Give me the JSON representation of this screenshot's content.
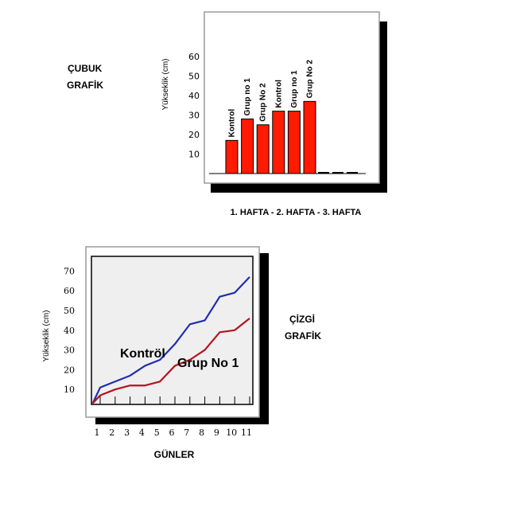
{
  "bar_section": {
    "title_line1": "ÇUBUK",
    "title_line2": "GRAFİK",
    "xlabel": "1. HAFTA -  2. HAFTA - 3. HAFTA"
  },
  "line_section": {
    "title_line1": "ÇİZGİ",
    "title_line2": "GRAFİK",
    "xlabel": "GÜNLER"
  },
  "colors": {
    "bar_fill": "#ff1a00",
    "kontrol_line": "#1f2fb0",
    "grup_line": "#b3141f",
    "plot_bg": "#efefef",
    "shadow": "#000000"
  },
  "chart_data": [
    {
      "type": "bar",
      "ylabel": "Yükseklik (cm)",
      "ylim": [
        0,
        65
      ],
      "yticks": [
        10,
        20,
        30,
        40,
        50,
        60
      ],
      "categories": [
        "Kontrol",
        "Grup no 1",
        "Grup No 2",
        "Kontrol",
        "Grup no 1",
        "Grup No 2"
      ],
      "values": [
        17,
        28,
        25,
        32,
        32,
        37
      ],
      "grid": false,
      "legend": "none"
    },
    {
      "type": "line",
      "ylabel": "Yükseklik (cm)",
      "xlabel": "GÜNLER",
      "x": [
        1,
        2,
        3,
        4,
        5,
        6,
        7,
        8,
        9,
        10,
        11
      ],
      "ylim": [
        0,
        75
      ],
      "yticks": [
        10,
        20,
        30,
        40,
        50,
        60,
        70
      ],
      "series": [
        {
          "name": "Kontröl",
          "x": [
            0.5,
            1,
            2,
            3,
            4,
            5,
            6,
            7,
            8,
            9,
            10,
            11
          ],
          "values": [
            3,
            11,
            14,
            17,
            22,
            25,
            33,
            43,
            45,
            57,
            59,
            67
          ]
        },
        {
          "name": "Grup No 1",
          "x": [
            0.5,
            1,
            2,
            3,
            4,
            5,
            6,
            7,
            8,
            9,
            10,
            11
          ],
          "values": [
            3,
            7,
            10,
            12,
            12,
            14,
            22,
            25,
            30,
            39,
            40,
            46
          ]
        }
      ],
      "grid": false,
      "legend": "inline"
    }
  ]
}
